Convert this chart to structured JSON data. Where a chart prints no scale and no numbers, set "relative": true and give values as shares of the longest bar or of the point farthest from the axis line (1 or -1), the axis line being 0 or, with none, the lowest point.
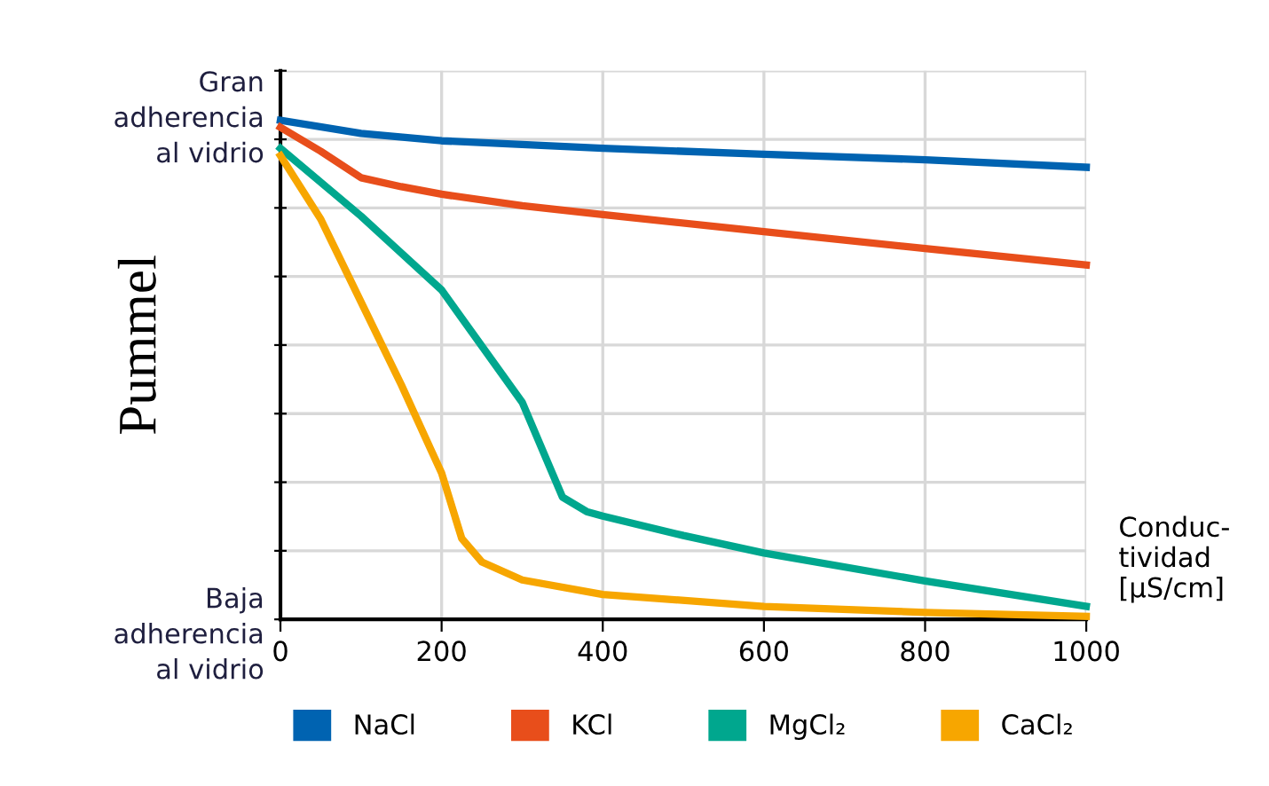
{
  "chart_data": {
    "type": "line",
    "relative": true,
    "ylabel": "Pummel",
    "xlabel": "Conduc-\ntividad\n[µS/cm]",
    "annotations": [
      "Gran\nadherencia\nal vidrio",
      "Baja\nadherencia\nal vidrio"
    ],
    "xlim": [
      0,
      1000
    ],
    "xticks": [
      0,
      200,
      400,
      600,
      800,
      1000
    ],
    "grid": true,
    "legend": "bottom",
    "marker": "none",
    "line_style": "solid",
    "series": [
      {
        "name": "NaCl",
        "color": "#0063b1",
        "x": [
          0,
          100,
          200,
          400,
          600,
          800,
          1000
        ],
        "values": [
          1.0,
          0.974,
          0.959,
          0.944,
          0.932,
          0.921,
          0.906
        ]
      },
      {
        "name": "KCl",
        "color": "#e84e1b",
        "x": [
          0,
          50,
          100,
          150,
          200,
          300,
          400,
          600,
          800,
          1000
        ],
        "values": [
          0.986,
          0.938,
          0.885,
          0.867,
          0.852,
          0.829,
          0.811,
          0.777,
          0.743,
          0.71
        ]
      },
      {
        "name": "MgCl₂",
        "color": "#00a78e",
        "x": [
          0,
          100,
          200,
          300,
          350,
          380,
          400,
          500,
          600,
          800,
          1000
        ],
        "values": [
          0.944,
          0.808,
          0.66,
          0.435,
          0.245,
          0.216,
          0.207,
          0.168,
          0.133,
          0.077,
          0.026
        ]
      },
      {
        "name": "CaCl₂",
        "color": "#f7a600",
        "x": [
          0,
          50,
          100,
          150,
          200,
          225,
          250,
          300,
          400,
          600,
          800,
          1000
        ],
        "values": [
          0.929,
          0.802,
          0.636,
          0.47,
          0.293,
          0.162,
          0.115,
          0.079,
          0.05,
          0.026,
          0.014,
          0.006
        ]
      }
    ]
  }
}
